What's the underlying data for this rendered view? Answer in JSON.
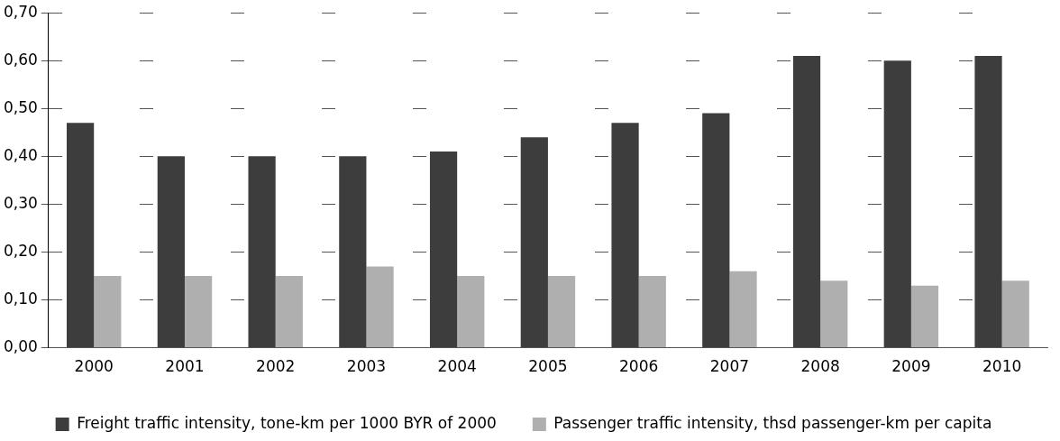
{
  "chart_data": {
    "type": "bar",
    "categories": [
      "2000",
      "2001",
      "2002",
      "2003",
      "2004",
      "2005",
      "2006",
      "2007",
      "2008",
      "2009",
      "2010"
    ],
    "series": [
      {
        "name": "Freight traffic intensity, tone-km per 1000 BYR of 2000",
        "color": "#3d3d3d",
        "values": [
          0.47,
          0.4,
          0.4,
          0.4,
          0.41,
          0.44,
          0.47,
          0.49,
          0.61,
          0.6,
          0.61
        ]
      },
      {
        "name": "Passenger traffic intensity, thsd passenger-km per capita",
        "color": "#afafaf",
        "values": [
          0.15,
          0.15,
          0.15,
          0.17,
          0.15,
          0.15,
          0.15,
          0.16,
          0.14,
          0.13,
          0.14
        ]
      }
    ],
    "ylim": [
      0,
      0.7
    ],
    "yticks": [
      {
        "value": 0,
        "label": "0,00"
      },
      {
        "value": 0.1,
        "label": "0,10"
      },
      {
        "value": 0.2,
        "label": "0,20"
      },
      {
        "value": 0.3,
        "label": "0,30"
      },
      {
        "value": 0.4,
        "label": "0,40"
      },
      {
        "value": 0.5,
        "label": "0,50"
      },
      {
        "value": 0.6,
        "label": "0,60"
      },
      {
        "value": 0.7,
        "label": "0,70"
      }
    ],
    "grid": "y",
    "legend": "bottom"
  }
}
